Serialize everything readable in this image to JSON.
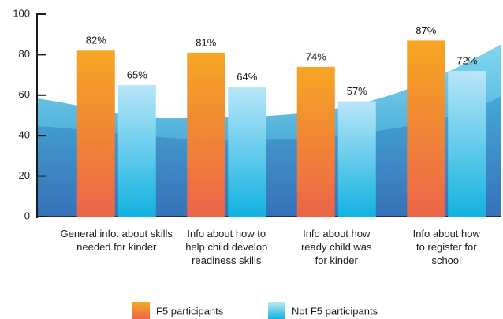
{
  "chart_data": {
    "type": "bar",
    "categories": [
      "General info. about skills\nneeded for kinder",
      "Info about how to\nhelp child develop\nreadiness skills",
      "Info about how\nready child was\nfor kinder",
      "Info about how\nto register for\nschool"
    ],
    "series": [
      {
        "name": "F5 participants",
        "color": "#f6a623",
        "values": [
          82,
          81,
          74,
          87
        ],
        "value_labels": [
          "82%",
          "81%",
          "74%",
          "87%"
        ]
      },
      {
        "name": "Not F5 participants",
        "color": "#b9e6f8",
        "values": [
          65,
          64,
          57,
          72
        ],
        "value_labels": [
          "65%",
          "64%",
          "57%",
          "72%"
        ]
      }
    ],
    "ylim": [
      0,
      100
    ],
    "yticks": [
      0,
      20,
      40,
      60,
      80,
      100
    ],
    "legend": "bottom"
  }
}
